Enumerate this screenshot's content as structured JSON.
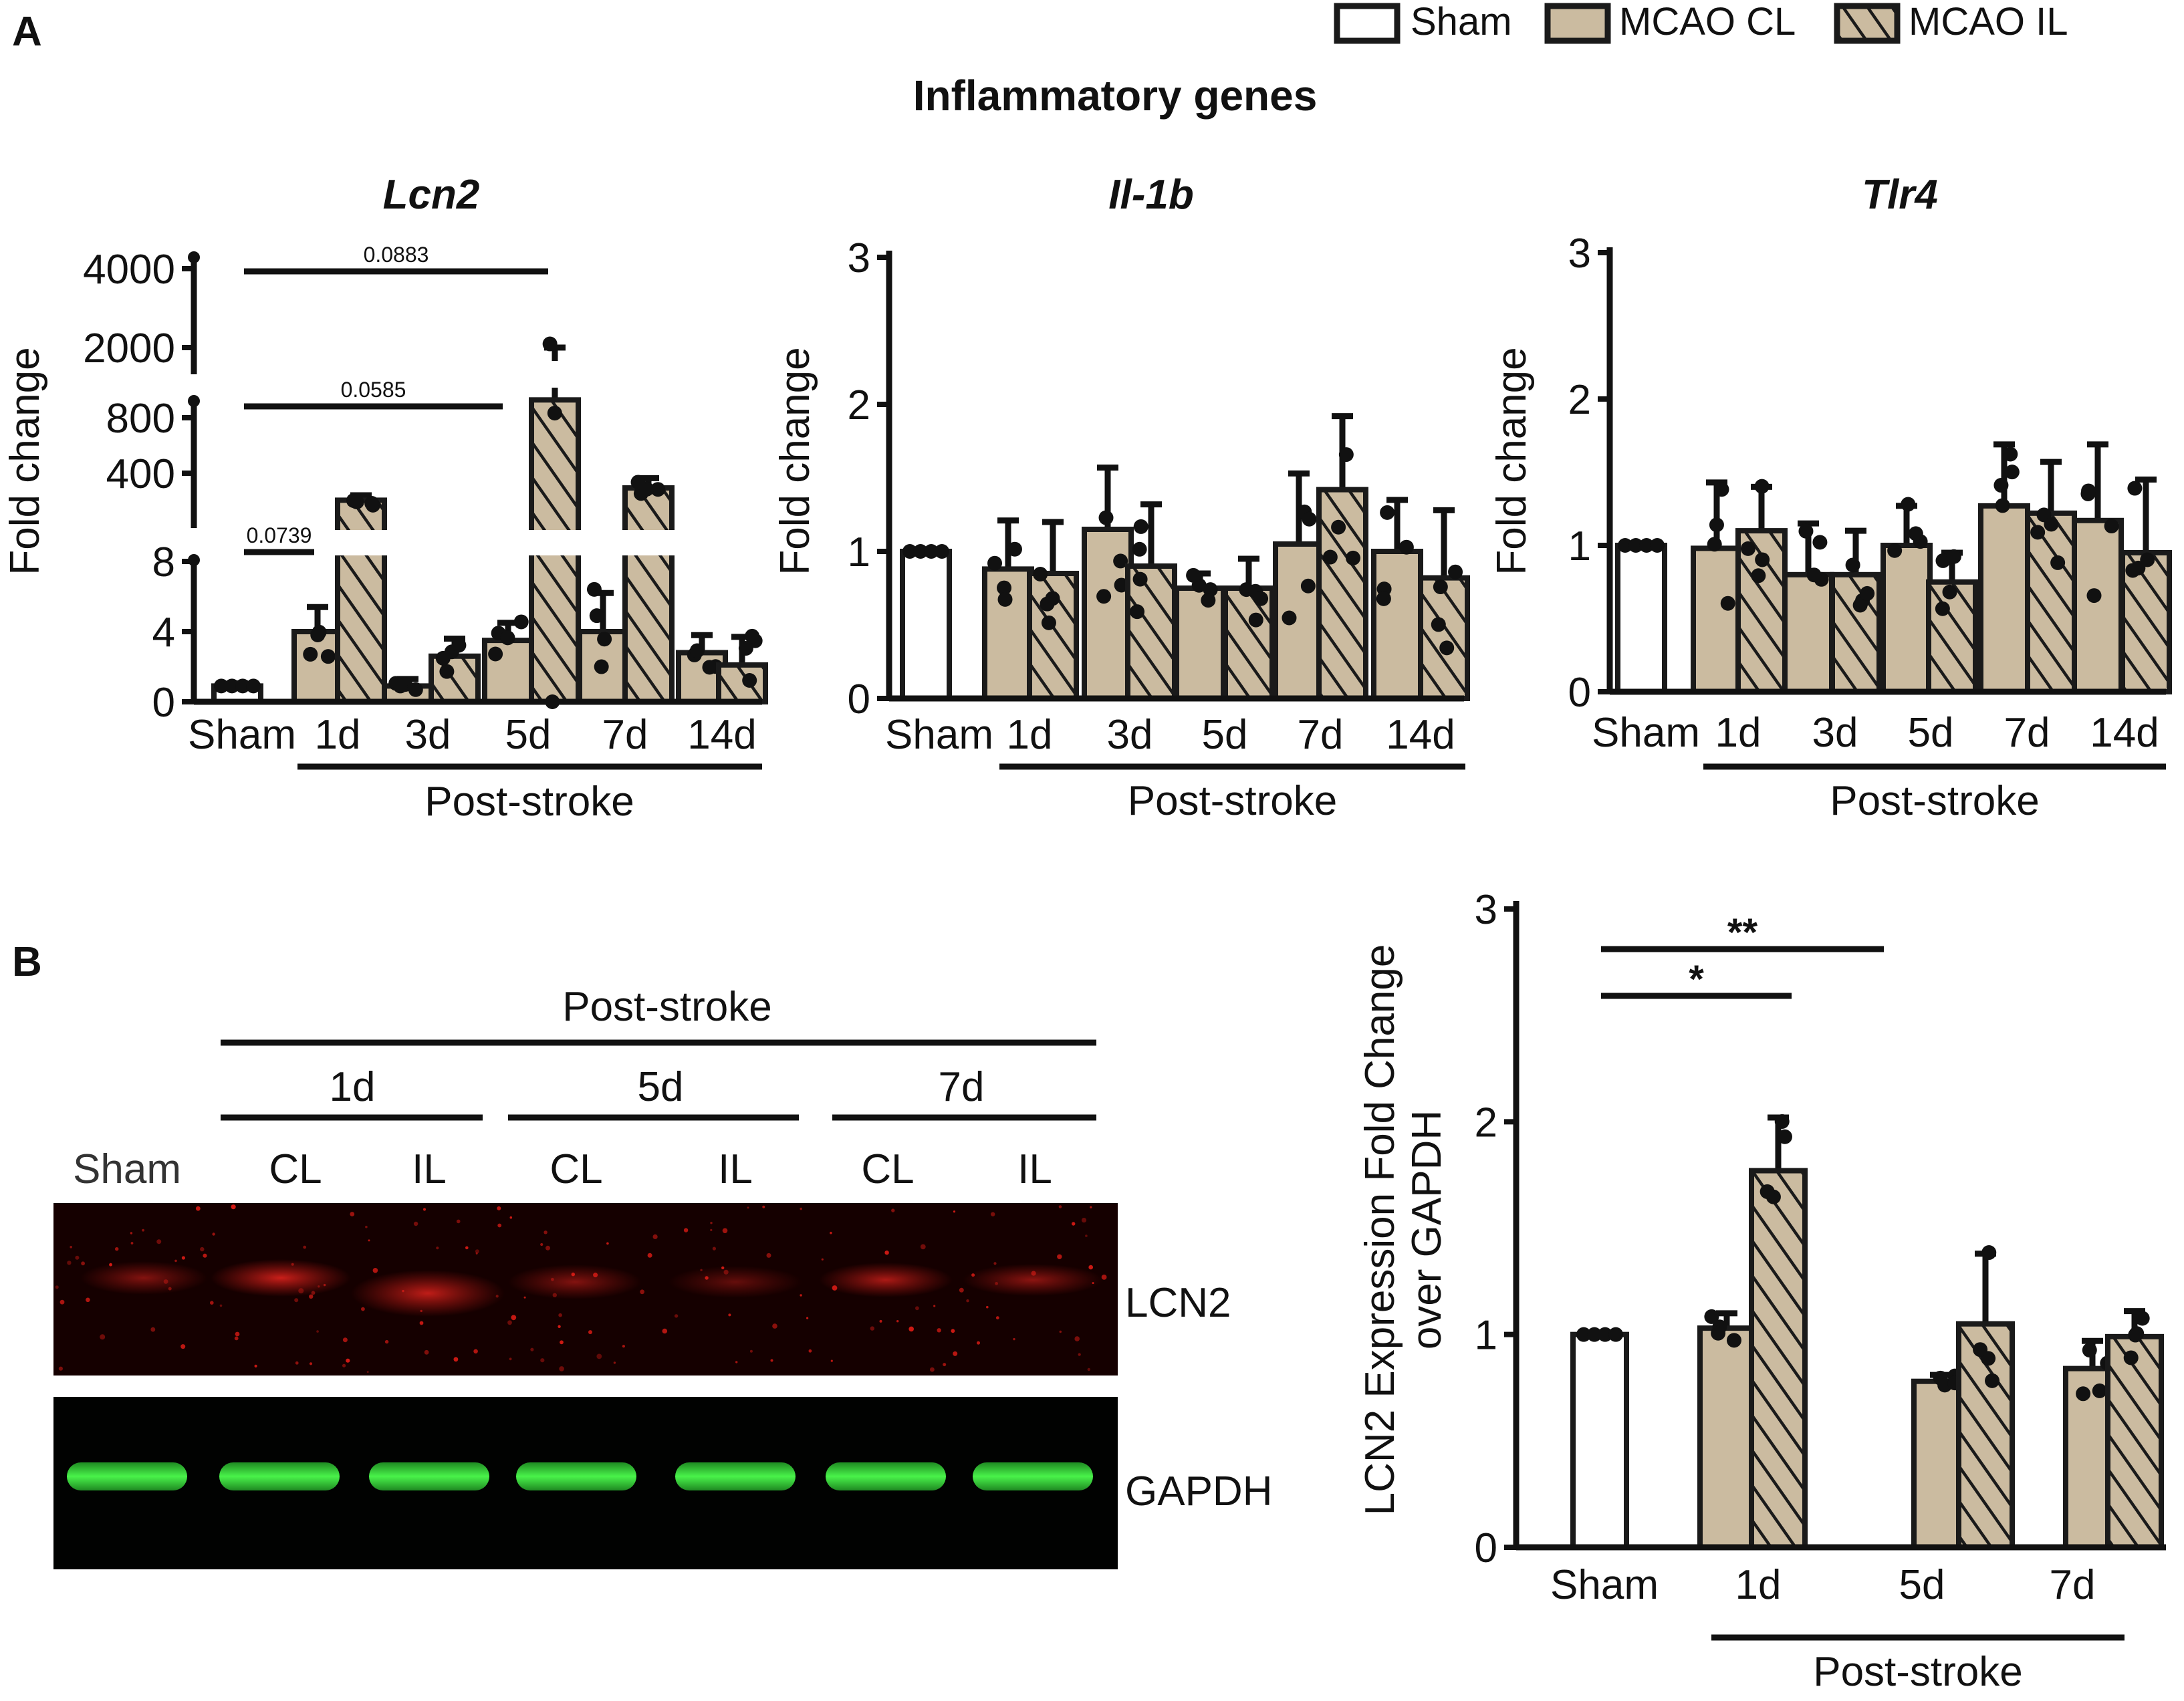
{
  "panel_labels": {
    "a": "A",
    "b": "B"
  },
  "legend": {
    "sham": "Sham",
    "cl": "MCAO CL",
    "il": "MCAO IL",
    "colors": {
      "sham": "#ffffff",
      "mcao": "#cbbba0",
      "stroke": "#1a1a1a",
      "lcn2_band": "#e0201c",
      "gapdh_band": "#39e23a"
    }
  },
  "panel_a_title": "Inflammatory genes",
  "chart_data": [
    {
      "type": "bar",
      "title": "Lcn2",
      "ylabel": "Fold change",
      "xlabel": "Post-stroke",
      "axis_break": true,
      "y_segments": [
        {
          "range": [
            0,
            8
          ],
          "ticks": [
            "0",
            "4",
            "8"
          ]
        },
        {
          "range": [
            8,
            1000
          ],
          "ticks": [
            "400",
            "800"
          ]
        },
        {
          "range": [
            1000,
            4000
          ],
          "ticks": [
            "2000",
            "4000"
          ]
        }
      ],
      "categories": [
        "Sham",
        "1d",
        "3d",
        "5d",
        "7d",
        "14d"
      ],
      "series": [
        {
          "name": "Sham",
          "values": [
            0.9,
            null,
            null,
            null,
            null,
            null
          ],
          "errors": [
            0.15,
            null,
            null,
            null,
            null,
            null
          ]
        },
        {
          "name": "MCAO CL",
          "values": [
            null,
            4.0,
            0.9,
            3.5,
            4.0,
            2.8
          ],
          "errors": [
            null,
            1.4,
            0.4,
            1.0,
            2.2,
            1.0
          ]
        },
        {
          "name": "MCAO IL",
          "values": [
            null,
            180,
            2.6,
            1000,
            280,
            2.1
          ],
          "errors": [
            null,
            40,
            1.0,
            1000,
            80,
            1.6
          ]
        }
      ],
      "comparisons": [
        {
          "from": "Sham",
          "to": "1d",
          "label": "0.0739"
        },
        {
          "from": "Sham",
          "to": "5d",
          "label": "0.0585"
        },
        {
          "from": "Sham",
          "to": "5d",
          "label": "0.0883"
        }
      ]
    },
    {
      "type": "bar",
      "title": "Il-1b",
      "ylabel": "Fold change",
      "xlabel": "Post-stroke",
      "ylim": [
        0,
        3
      ],
      "yticks": [
        "0",
        "1",
        "2",
        "3"
      ],
      "categories": [
        "Sham",
        "1d",
        "3d",
        "5d",
        "7d",
        "14d"
      ],
      "series": [
        {
          "name": "Sham",
          "values": [
            1.0,
            null,
            null,
            null,
            null,
            null
          ],
          "errors": [
            0.0,
            null,
            null,
            null,
            null,
            null
          ]
        },
        {
          "name": "MCAO CL",
          "values": [
            null,
            0.88,
            1.15,
            0.75,
            1.05,
            1.0
          ],
          "errors": [
            null,
            0.33,
            0.42,
            0.1,
            0.48,
            0.35
          ]
        },
        {
          "name": "MCAO IL",
          "values": [
            null,
            0.85,
            0.9,
            0.75,
            1.42,
            0.82
          ],
          "errors": [
            null,
            0.35,
            0.42,
            0.2,
            0.5,
            0.46
          ]
        }
      ]
    },
    {
      "type": "bar",
      "title": "Tlr4",
      "ylabel": "Fold change",
      "xlabel": "Post-stroke",
      "ylim": [
        0,
        3
      ],
      "yticks": [
        "0",
        "1",
        "2",
        "3"
      ],
      "categories": [
        "Sham",
        "1d",
        "3d",
        "5d",
        "7d",
        "14d"
      ],
      "series": [
        {
          "name": "Sham",
          "values": [
            1.0,
            null,
            null,
            null,
            null,
            null
          ],
          "errors": [
            0.0,
            null,
            null,
            null,
            null,
            null
          ]
        },
        {
          "name": "MCAO CL",
          "values": [
            null,
            0.98,
            0.8,
            1.0,
            1.27,
            1.17
          ],
          "errors": [
            null,
            0.45,
            0.35,
            0.27,
            0.42,
            0.52
          ]
        },
        {
          "name": "MCAO IL",
          "values": [
            null,
            1.1,
            0.8,
            0.75,
            1.22,
            0.95
          ],
          "errors": [
            null,
            0.3,
            0.3,
            0.2,
            0.35,
            0.5
          ]
        }
      ]
    },
    {
      "type": "bar",
      "title": "",
      "ylabel": "LCN2 Expression Fold Change over GAPDH",
      "ylabel_lines": [
        "LCN2 Expression Fold Change",
        "over GAPDH"
      ],
      "xlabel": "Post-stroke",
      "ylim": [
        0,
        3
      ],
      "yticks": [
        "0",
        "1",
        "2",
        "3"
      ],
      "categories": [
        "Sham",
        "1d",
        "5d",
        "7d"
      ],
      "series": [
        {
          "name": "Sham",
          "values": [
            1.0,
            null,
            null,
            null
          ],
          "errors": [
            0.0,
            null,
            null,
            null
          ]
        },
        {
          "name": "MCAO CL",
          "values": [
            null,
            1.03,
            0.78,
            0.84
          ],
          "errors": [
            null,
            0.07,
            0.03,
            0.13
          ]
        },
        {
          "name": "MCAO IL",
          "values": [
            null,
            1.77,
            1.05,
            0.99
          ],
          "errors": [
            null,
            0.25,
            0.33,
            0.12
          ]
        }
      ],
      "comparisons": [
        {
          "from": "Sham",
          "to": "1d IL",
          "label": "*"
        },
        {
          "from": "Sham",
          "to": "5d CL",
          "label": "**"
        }
      ]
    }
  ],
  "blot": {
    "header": "Post-stroke",
    "timepoints": [
      "1d",
      "5d",
      "7d"
    ],
    "lanes": [
      "Sham",
      "CL",
      "IL",
      "CL",
      "IL",
      "CL",
      "IL"
    ],
    "band_labels": [
      "LCN2",
      "GAPDH"
    ]
  }
}
